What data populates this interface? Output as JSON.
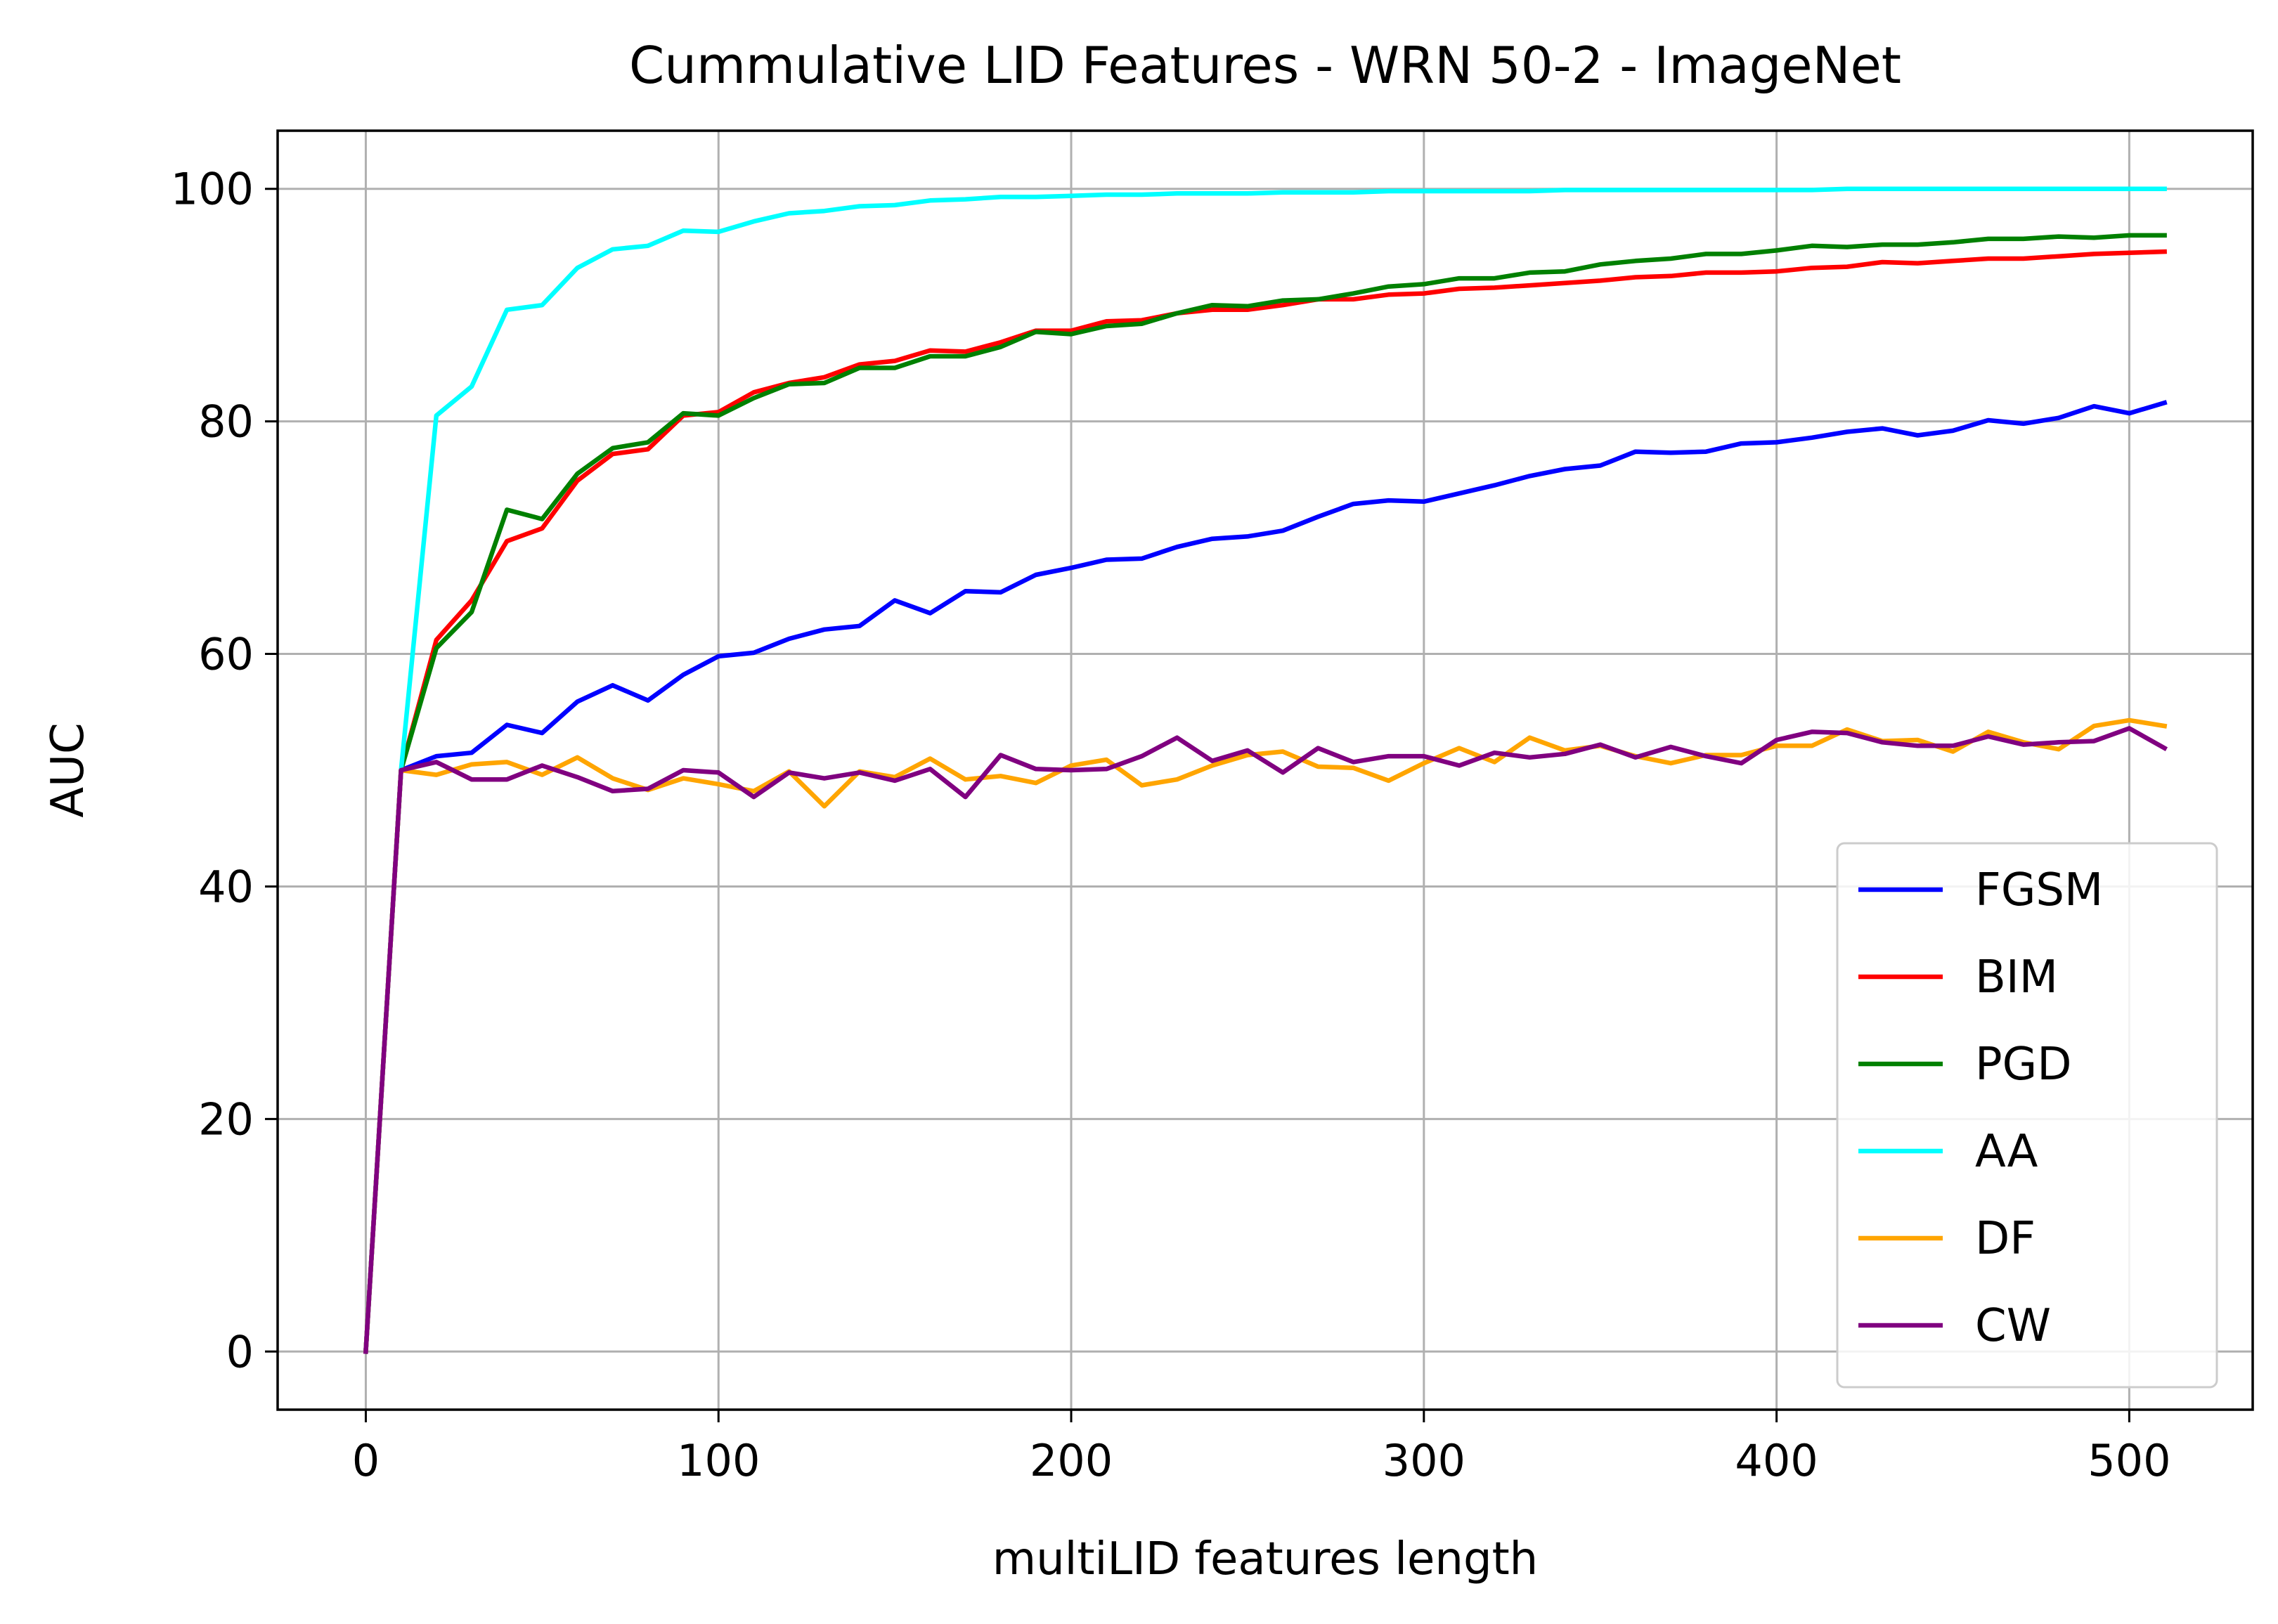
{
  "chart_data": {
    "type": "line",
    "title": "Cummulative LID Features - WRN 50-2 - ImageNet",
    "xlabel": "multiLID features length",
    "ylabel": "AUC",
    "xlim": [
      -25,
      535
    ],
    "ylim": [
      -5,
      105
    ],
    "xticks": [
      0,
      100,
      200,
      300,
      400,
      500
    ],
    "yticks": [
      0,
      20,
      40,
      60,
      80,
      100
    ],
    "grid": true,
    "legend_position": "lower-right",
    "x": [
      0,
      10,
      20,
      30,
      40,
      50,
      60,
      70,
      80,
      90,
      100,
      110,
      120,
      130,
      140,
      150,
      160,
      170,
      180,
      190,
      200,
      210,
      220,
      230,
      240,
      250,
      260,
      270,
      280,
      290,
      300,
      310,
      320,
      330,
      340,
      350,
      360,
      370,
      380,
      390,
      400,
      410,
      420,
      430,
      440,
      450,
      460,
      470,
      480,
      490,
      500,
      510
    ],
    "series": [
      {
        "name": "FGSM",
        "color": "#0000ff",
        "values": [
          0,
          50,
          51.2,
          51.5,
          53.9,
          53.2,
          55.9,
          57.3,
          56,
          58.2,
          59.8,
          60.1,
          61.3,
          62.1,
          62.4,
          64.6,
          63.5,
          65.4,
          65.3,
          66.8,
          67.4,
          68.1,
          68.2,
          69.2,
          69.9,
          70.1,
          70.6,
          71.8,
          72.9,
          73.2,
          73.1,
          73.8,
          74.5,
          75.3,
          75.9,
          76.2,
          77.4,
          77.3,
          77.4,
          78.1,
          78.2,
          78.6,
          79.1,
          79.4,
          78.8,
          79.2,
          80.1,
          79.8,
          80.3,
          81.3,
          80.7,
          81.6
        ]
      },
      {
        "name": "BIM",
        "color": "#ff0000",
        "values": [
          0,
          50,
          61.2,
          64.6,
          69.7,
          70.8,
          74.9,
          77.2,
          77.6,
          80.5,
          80.8,
          82.5,
          83.3,
          83.8,
          84.9,
          85.2,
          86.1,
          86,
          86.8,
          87.8,
          87.8,
          88.6,
          88.7,
          89.3,
          89.6,
          89.6,
          90,
          90.5,
          90.5,
          90.9,
          91,
          91.4,
          91.5,
          91.7,
          91.9,
          92.1,
          92.4,
          92.5,
          92.8,
          92.8,
          92.9,
          93.2,
          93.3,
          93.7,
          93.6,
          93.8,
          94,
          94,
          94.2,
          94.4,
          94.5,
          94.6
        ]
      },
      {
        "name": "PGD",
        "color": "#008000",
        "values": [
          0,
          50,
          60.5,
          63.6,
          72.4,
          71.6,
          75.5,
          77.7,
          78.2,
          80.7,
          80.5,
          82,
          83.2,
          83.3,
          84.6,
          84.6,
          85.6,
          85.6,
          86.4,
          87.7,
          87.5,
          88.2,
          88.4,
          89.3,
          90,
          89.9,
          90.4,
          90.5,
          91,
          91.6,
          91.8,
          92.3,
          92.3,
          92.8,
          92.9,
          93.5,
          93.8,
          94,
          94.4,
          94.4,
          94.7,
          95.1,
          95,
          95.2,
          95.2,
          95.4,
          95.7,
          95.7,
          95.9,
          95.8,
          96,
          96
        ]
      },
      {
        "name": "AA",
        "color": "#00ffff",
        "values": [
          0,
          50,
          80.5,
          83,
          89.6,
          90,
          93.2,
          94.8,
          95.1,
          96.4,
          96.3,
          97.2,
          97.9,
          98.1,
          98.5,
          98.6,
          99,
          99.1,
          99.3,
          99.3,
          99.4,
          99.5,
          99.5,
          99.6,
          99.6,
          99.6,
          99.7,
          99.7,
          99.7,
          99.8,
          99.8,
          99.8,
          99.8,
          99.8,
          99.9,
          99.9,
          99.9,
          99.9,
          99.9,
          99.9,
          99.9,
          99.9,
          100,
          100,
          100,
          100,
          100,
          100,
          100,
          100,
          100,
          100
        ]
      },
      {
        "name": "DF",
        "color": "#ffa500",
        "values": [
          0,
          50,
          49.6,
          50.5,
          50.7,
          49.6,
          51.1,
          49.3,
          48.3,
          49.3,
          48.8,
          48.2,
          49.9,
          46.9,
          49.9,
          49.4,
          51,
          49.2,
          49.5,
          48.9,
          50.4,
          50.9,
          48.7,
          49.2,
          50.4,
          51.3,
          51.6,
          50.3,
          50.2,
          49.1,
          50.6,
          51.9,
          50.7,
          52.8,
          51.7,
          52.1,
          51.2,
          50.6,
          51.3,
          51.3,
          52.1,
          52.1,
          53.5,
          52.5,
          52.6,
          51.6,
          53.3,
          52.4,
          51.8,
          53.8,
          54.3,
          53.8
        ]
      },
      {
        "name": "CW",
        "color": "#800080",
        "values": [
          0,
          50,
          50.7,
          49.2,
          49.2,
          50.4,
          49.4,
          48.2,
          48.4,
          50,
          49.8,
          47.7,
          49.8,
          49.3,
          49.8,
          49.1,
          50.1,
          47.7,
          51.3,
          50.1,
          50,
          50.1,
          51.2,
          52.8,
          50.8,
          51.7,
          49.8,
          51.9,
          50.7,
          51.2,
          51.2,
          50.4,
          51.5,
          51.1,
          51.4,
          52.2,
          51.1,
          52,
          51.2,
          50.6,
          52.6,
          53.3,
          53.2,
          52.4,
          52.1,
          52.1,
          52.9,
          52.2,
          52.4,
          52.5,
          53.6,
          51.9
        ]
      }
    ]
  }
}
